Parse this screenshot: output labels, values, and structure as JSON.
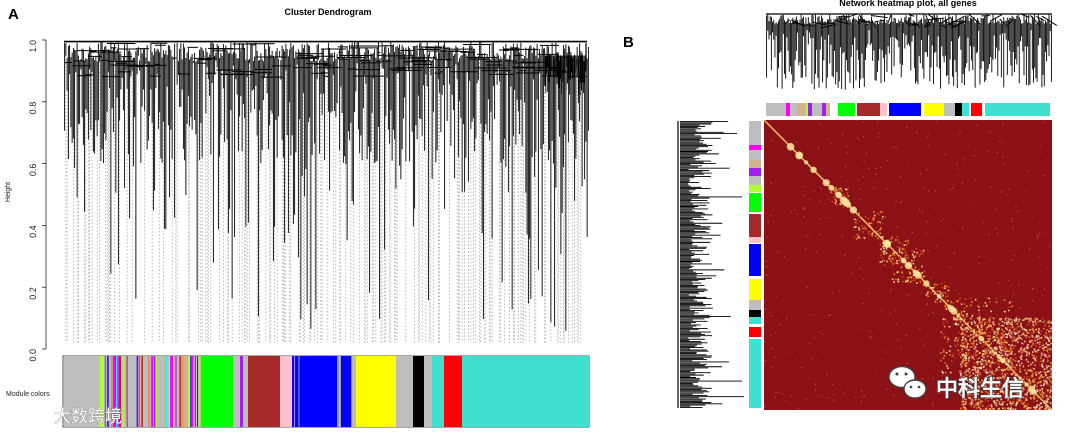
{
  "panel_a": {
    "letter": "A",
    "title": "Cluster Dendrogram",
    "ylabel": "Height",
    "module_label": "Module colors",
    "y_ticks": [
      "0.0",
      "0.2",
      "0.4",
      "0.6",
      "0.8",
      "1.0"
    ]
  },
  "panel_b": {
    "letter": "B",
    "title": "Network heatmap plot, all genes"
  },
  "watermarks": {
    "left": "大数跨境",
    "right": "中科生信"
  },
  "module_colors": {
    "grey": "#bebebe",
    "greenyellow": "#adff2f",
    "magenta": "#ff00ff",
    "purple": "#a020f0",
    "tan": "#d2b48c",
    "green": "#00ff00",
    "brown": "#a52a2a",
    "pink": "#ffc0cb",
    "blue": "#0000ff",
    "yellow": "#ffff00",
    "black": "#000000",
    "red": "#ff0000",
    "turquoise": "#40e0d0",
    "salmon": "#fa8072",
    "cyan": "#00ffff"
  },
  "chart_data": [
    {
      "type": "other",
      "title": "Cluster Dendrogram",
      "ylabel": "Height",
      "ylim": [
        0,
        1
      ],
      "y_ticks": [
        0.0,
        0.2,
        0.4,
        0.6,
        0.8,
        1.0
      ],
      "color_bar_label": "Module colors",
      "modules": [
        "grey",
        "greenyellow",
        "magenta",
        "tan",
        "purple",
        "green",
        "brown",
        "pink",
        "blue",
        "yellow",
        "black",
        "red",
        "turquoise"
      ]
    },
    {
      "type": "heatmap",
      "title": "Network heatmap plot, all genes",
      "modules": [
        "grey",
        "magenta",
        "greenyellow",
        "green",
        "brown",
        "pink",
        "blue",
        "yellow",
        "black",
        "red",
        "turquoise"
      ]
    }
  ]
}
